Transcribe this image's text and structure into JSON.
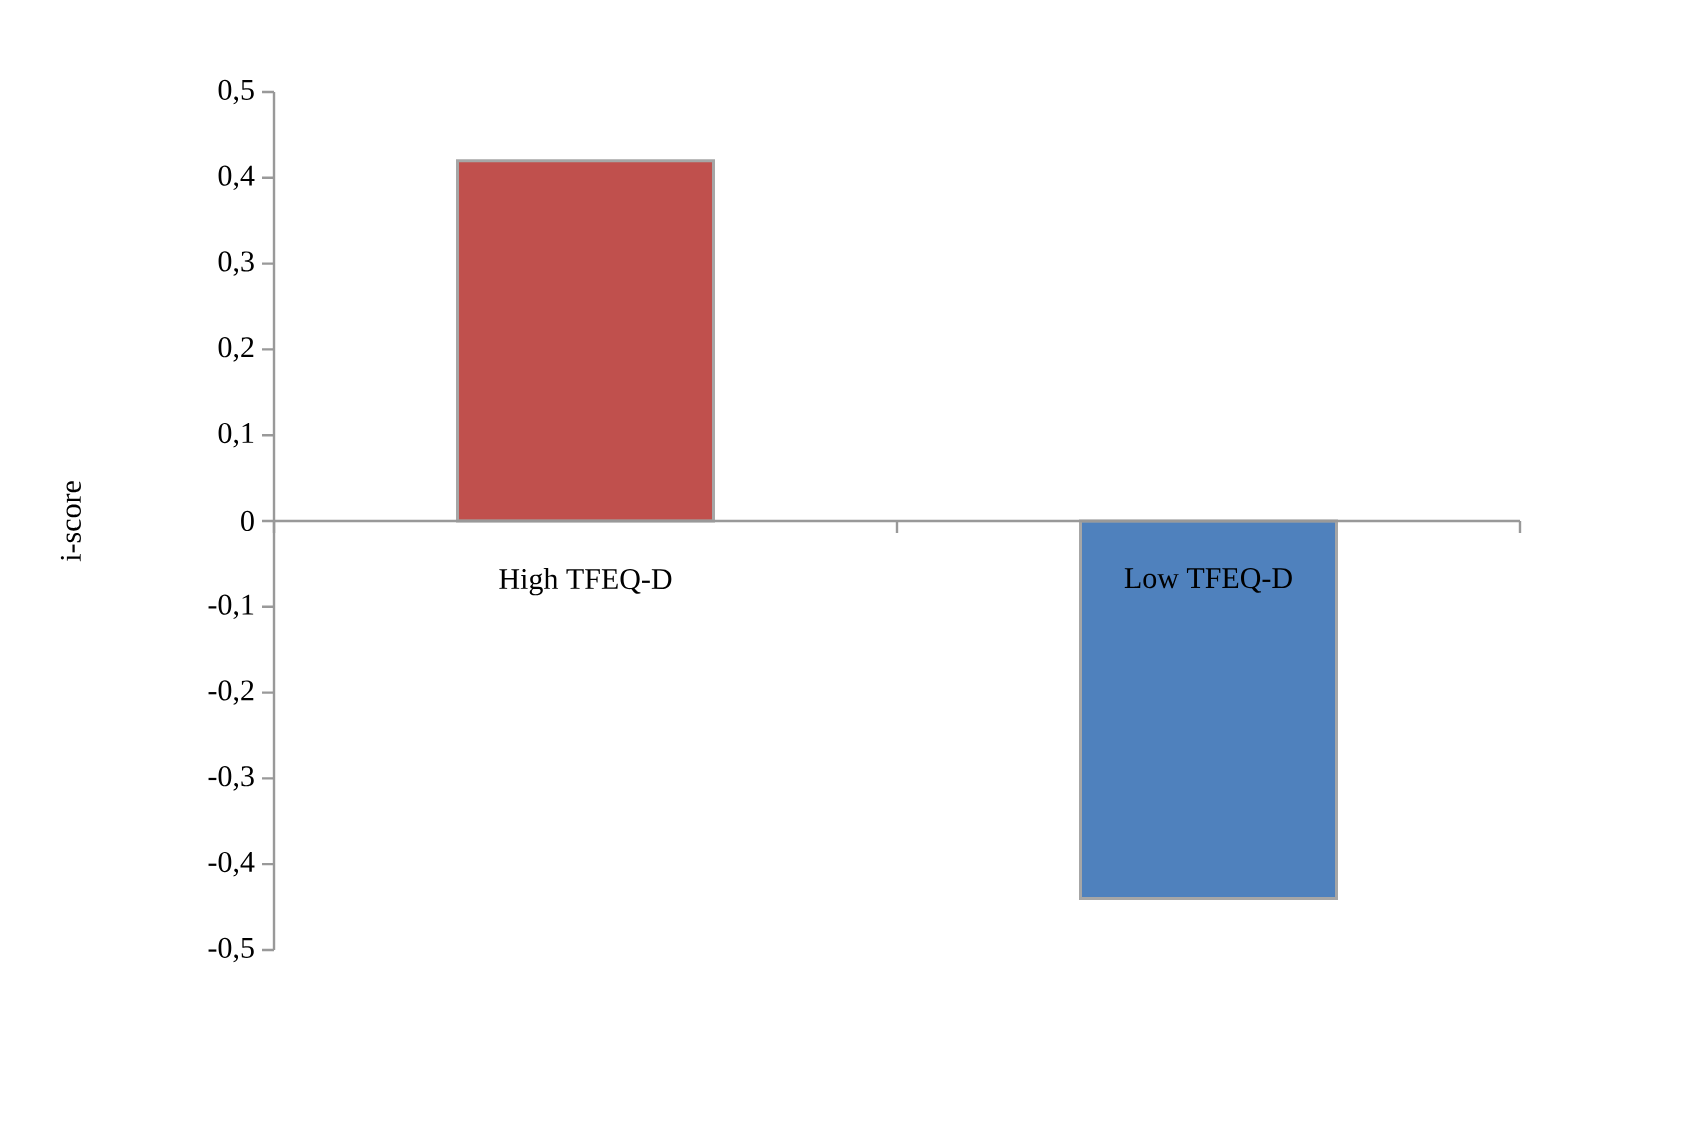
{
  "chart_data": {
    "type": "bar",
    "ylabel": "i-score",
    "categories": [
      "High TFEQ-D",
      "Low TFEQ-D"
    ],
    "values": [
      0.42,
      -0.44
    ],
    "colors": [
      "#c0504d",
      "#4f81bd"
    ],
    "ylim": [
      -0.5,
      0.5
    ],
    "yticks": [
      {
        "value": -0.5,
        "label": "-0,5"
      },
      {
        "value": -0.4,
        "label": "-0,4"
      },
      {
        "value": -0.3,
        "label": "-0,3"
      },
      {
        "value": -0.2,
        "label": "-0,2"
      },
      {
        "value": -0.1,
        "label": "-0,1"
      },
      {
        "value": 0,
        "label": "0"
      },
      {
        "value": 0.1,
        "label": "0,1"
      },
      {
        "value": 0.2,
        "label": "0,2"
      },
      {
        "value": 0.3,
        "label": "0,3"
      },
      {
        "value": 0.4,
        "label": "0,4"
      },
      {
        "value": 0.5,
        "label": "0,5"
      }
    ],
    "grid": false
  }
}
